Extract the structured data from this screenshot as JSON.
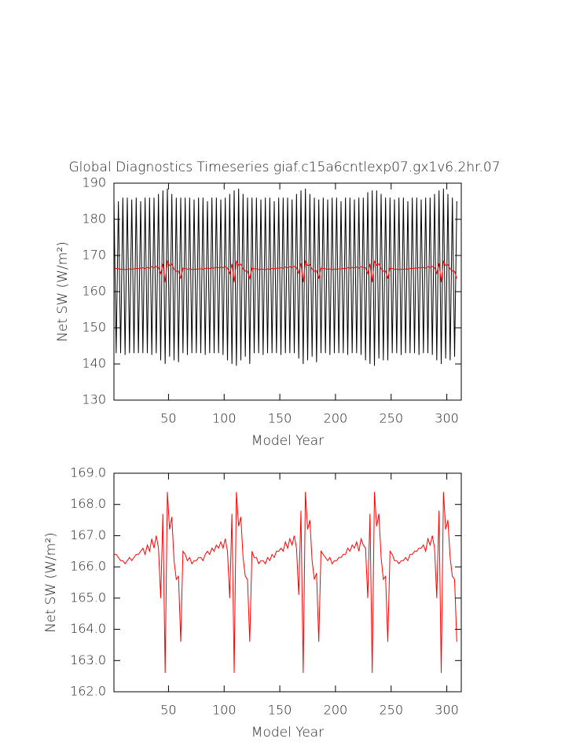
{
  "chart_data": [
    {
      "type": "line",
      "title": "Global Diagnostics Timeseries giaf.c15a6cntlexp07.gx1v6.2hr.07",
      "xlabel": "Model Year",
      "ylabel": "Net SW (W/m²)",
      "xlim": [
        1,
        313
      ],
      "xticks": [
        50,
        100,
        150,
        200,
        250,
        300
      ],
      "ylim": [
        130,
        190
      ],
      "yticks": [
        130,
        140,
        150,
        160,
        170,
        180,
        190
      ],
      "x": [
        1,
        3,
        5,
        7,
        9,
        11,
        13,
        15,
        17,
        19,
        21,
        23,
        25,
        27,
        29,
        31,
        33,
        35,
        37,
        39,
        41,
        43,
        45,
        47,
        49,
        51,
        53,
        55,
        57,
        59,
        61,
        63,
        65,
        67,
        69,
        71,
        73,
        75,
        77,
        79,
        81,
        83,
        85,
        87,
        89,
        91,
        93,
        95,
        97,
        99,
        101,
        103,
        105,
        107,
        109,
        111,
        113,
        115,
        117,
        119,
        121,
        123,
        125,
        127,
        129,
        131,
        133,
        135,
        137,
        139,
        141,
        143,
        145,
        147,
        149,
        151,
        153,
        155,
        157,
        159,
        161,
        163,
        165,
        167,
        169,
        171,
        173,
        175,
        177,
        179,
        181,
        183,
        185,
        187,
        189,
        191,
        193,
        195,
        197,
        199,
        201,
        203,
        205,
        207,
        209,
        211,
        213,
        215,
        217,
        219,
        221,
        223,
        225,
        227,
        229,
        231,
        233,
        235,
        237,
        239,
        241,
        243,
        245,
        247,
        249,
        251,
        253,
        255,
        257,
        259,
        261,
        263,
        265,
        267,
        269,
        271,
        273,
        275,
        277,
        279,
        281,
        283,
        285,
        287,
        289,
        291,
        293,
        295,
        297,
        299,
        301,
        303,
        305,
        307,
        309
      ],
      "series": [
        {
          "color": "#000000",
          "values": [
            186,
            143,
            185,
            143,
            186,
            142.5,
            186,
            143,
            185.5,
            143,
            186,
            143,
            185,
            143,
            186,
            143,
            186,
            142.5,
            186,
            143,
            187,
            141,
            188,
            140,
            188.5,
            142,
            187,
            141,
            186,
            140.5,
            186,
            143,
            186,
            142.5,
            186,
            143,
            185.5,
            143,
            186,
            143,
            186,
            142.5,
            185,
            143,
            186,
            143,
            186,
            143,
            185.5,
            142.5,
            186,
            141,
            187,
            140,
            188,
            139.5,
            188.5,
            141,
            187,
            142,
            186,
            140,
            186,
            143,
            186,
            143,
            185.5,
            142.5,
            186,
            143,
            186,
            143,
            185,
            143,
            186,
            142.5,
            186,
            143,
            186,
            143,
            185.5,
            143,
            187,
            141.5,
            188,
            140,
            188.5,
            141,
            187,
            142,
            186,
            140.5,
            185.5,
            143,
            186,
            143,
            185.5,
            142.5,
            186,
            143,
            186,
            143,
            185,
            143,
            186,
            142.5,
            186,
            143,
            185.5,
            143,
            186,
            142.5,
            186,
            141,
            187.5,
            140,
            188,
            139.5,
            188,
            141.5,
            187,
            141,
            186,
            141,
            186,
            143,
            185.5,
            143,
            186,
            142.5,
            186,
            143,
            185,
            143,
            186,
            143,
            186,
            142.5,
            185.5,
            143,
            186,
            143,
            186,
            142.5,
            187,
            141,
            188,
            140,
            188.5,
            141.5,
            187,
            141,
            186,
            142,
            185
          ]
        },
        {
          "color": "#ff0000",
          "values": [
            166.4,
            166.4,
            166.3,
            166.2,
            166.2,
            166.1,
            166.2,
            166.3,
            166.2,
            166.3,
            166.4,
            166.4,
            166.5,
            166.6,
            166.4,
            166.7,
            166.5,
            166.9,
            166.6,
            167.0,
            166.6,
            165.0,
            167.7,
            162.6,
            168.4,
            167.2,
            167.6,
            166.2,
            165.6,
            165.7,
            163.6,
            166.5,
            166.4,
            166.2,
            166.3,
            166.1,
            166.2,
            166.2,
            166.3,
            166.3,
            166.2,
            166.4,
            166.5,
            166.4,
            166.6,
            166.5,
            166.7,
            166.6,
            166.8,
            166.6,
            166.9,
            166.5,
            165.0,
            167.7,
            162.6,
            168.4,
            167.3,
            167.6,
            166.3,
            165.7,
            165.6,
            163.6,
            166.5,
            166.3,
            166.3,
            166.1,
            166.2,
            166.2,
            166.1,
            166.3,
            166.2,
            166.4,
            166.3,
            166.5,
            166.5,
            166.6,
            166.5,
            166.8,
            166.6,
            166.9,
            166.7,
            167.0,
            166.6,
            165.1,
            167.8,
            162.6,
            168.4,
            167.2,
            167.5,
            166.2,
            165.6,
            165.8,
            163.6,
            166.5,
            166.4,
            166.3,
            166.2,
            166.3,
            166.1,
            166.2,
            166.2,
            166.3,
            166.3,
            166.4,
            166.4,
            166.6,
            166.5,
            166.7,
            166.6,
            166.8,
            166.5,
            166.9,
            166.7,
            166.6,
            165.0,
            167.7,
            162.6,
            168.4,
            167.3,
            167.7,
            166.3,
            165.6,
            165.7,
            163.6,
            166.5,
            166.4,
            166.2,
            166.2,
            166.1,
            166.2,
            166.2,
            166.3,
            166.2,
            166.4,
            166.4,
            166.5,
            166.5,
            166.6,
            166.6,
            166.7,
            166.5,
            166.9,
            166.7,
            167.0,
            166.6,
            165.0,
            167.8,
            162.6,
            168.4,
            167.2,
            167.5,
            166.3,
            165.7,
            165.6,
            163.6
          ]
        }
      ]
    },
    {
      "type": "line",
      "xlabel": "Model Year",
      "ylabel": "Net SW (W/m²)",
      "xlim": [
        1,
        313
      ],
      "xticks": [
        50,
        100,
        150,
        200,
        250,
        300
      ],
      "ylim": [
        162,
        169
      ],
      "yticks": [
        {
          "value": 162,
          "label": "162.0"
        },
        {
          "value": 163,
          "label": "163.0"
        },
        {
          "value": 164,
          "label": "164.0"
        },
        {
          "value": 165,
          "label": "165.0"
        },
        {
          "value": 166,
          "label": "166.0"
        },
        {
          "value": 167,
          "label": "167.0"
        },
        {
          "value": 168,
          "label": "168.0"
        },
        {
          "value": 169,
          "label": "169.0"
        }
      ],
      "x": [
        1,
        3,
        5,
        7,
        9,
        11,
        13,
        15,
        17,
        19,
        21,
        23,
        25,
        27,
        29,
        31,
        33,
        35,
        37,
        39,
        41,
        43,
        45,
        47,
        49,
        51,
        53,
        55,
        57,
        59,
        61,
        63,
        65,
        67,
        69,
        71,
        73,
        75,
        77,
        79,
        81,
        83,
        85,
        87,
        89,
        91,
        93,
        95,
        97,
        99,
        101,
        103,
        105,
        107,
        109,
        111,
        113,
        115,
        117,
        119,
        121,
        123,
        125,
        127,
        129,
        131,
        133,
        135,
        137,
        139,
        141,
        143,
        145,
        147,
        149,
        151,
        153,
        155,
        157,
        159,
        161,
        163,
        165,
        167,
        169,
        171,
        173,
        175,
        177,
        179,
        181,
        183,
        185,
        187,
        189,
        191,
        193,
        195,
        197,
        199,
        201,
        203,
        205,
        207,
        209,
        211,
        213,
        215,
        217,
        219,
        221,
        223,
        225,
        227,
        229,
        231,
        233,
        235,
        237,
        239,
        241,
        243,
        245,
        247,
        249,
        251,
        253,
        255,
        257,
        259,
        261,
        263,
        265,
        267,
        269,
        271,
        273,
        275,
        277,
        279,
        281,
        283,
        285,
        287,
        289,
        291,
        293,
        295,
        297,
        299,
        301,
        303,
        305,
        307,
        309
      ],
      "series": [
        {
          "color": "#ff0000",
          "values": [
            166.4,
            166.4,
            166.3,
            166.2,
            166.2,
            166.1,
            166.2,
            166.3,
            166.2,
            166.3,
            166.4,
            166.4,
            166.5,
            166.6,
            166.4,
            166.7,
            166.5,
            166.9,
            166.6,
            167.0,
            166.6,
            165.0,
            167.7,
            162.6,
            168.4,
            167.2,
            167.6,
            166.2,
            165.6,
            165.7,
            163.6,
            166.5,
            166.4,
            166.2,
            166.3,
            166.1,
            166.2,
            166.2,
            166.3,
            166.3,
            166.2,
            166.4,
            166.5,
            166.4,
            166.6,
            166.5,
            166.7,
            166.6,
            166.8,
            166.6,
            166.9,
            166.5,
            165.0,
            167.7,
            162.6,
            168.4,
            167.3,
            167.6,
            166.3,
            165.7,
            165.6,
            163.6,
            166.5,
            166.3,
            166.3,
            166.1,
            166.2,
            166.2,
            166.1,
            166.3,
            166.2,
            166.4,
            166.3,
            166.5,
            166.5,
            166.6,
            166.5,
            166.8,
            166.6,
            166.9,
            166.7,
            167.0,
            166.6,
            165.1,
            167.8,
            162.6,
            168.4,
            167.2,
            167.5,
            166.2,
            165.6,
            165.8,
            163.6,
            166.5,
            166.4,
            166.3,
            166.2,
            166.3,
            166.1,
            166.2,
            166.2,
            166.3,
            166.3,
            166.4,
            166.4,
            166.6,
            166.5,
            166.7,
            166.6,
            166.8,
            166.5,
            166.9,
            166.7,
            166.6,
            165.0,
            167.7,
            162.6,
            168.4,
            167.3,
            167.7,
            166.3,
            165.6,
            165.7,
            163.6,
            166.5,
            166.4,
            166.2,
            166.2,
            166.1,
            166.2,
            166.2,
            166.3,
            166.2,
            166.4,
            166.4,
            166.5,
            166.5,
            166.6,
            166.6,
            166.7,
            166.5,
            166.9,
            166.7,
            167.0,
            166.6,
            165.0,
            167.8,
            162.6,
            168.4,
            167.2,
            167.5,
            166.3,
            165.7,
            165.6,
            163.6
          ]
        }
      ]
    }
  ]
}
